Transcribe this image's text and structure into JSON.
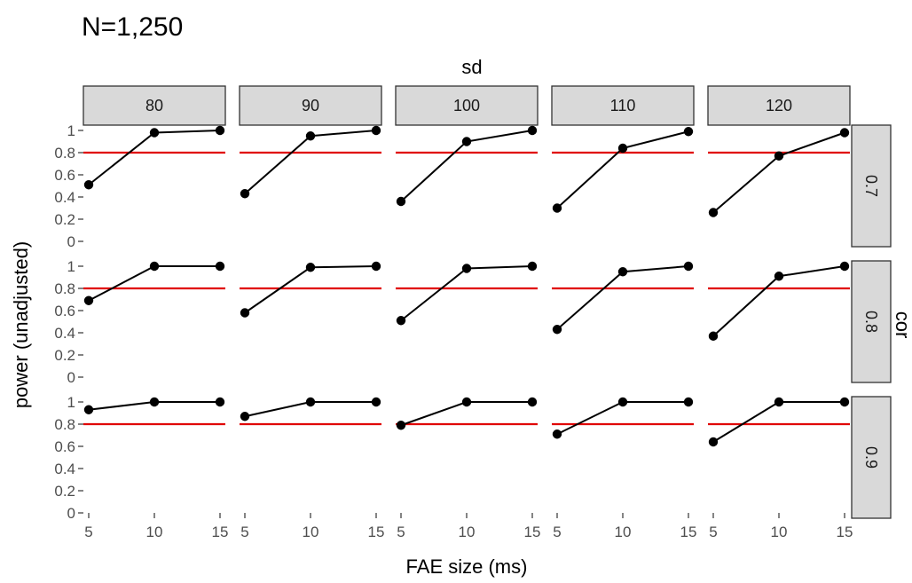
{
  "chart_data": {
    "type": "line",
    "title": "N=1,250",
    "xlabel": "FAE size (ms)",
    "ylabel": "power (unadjusted)",
    "col_facet_label": "sd",
    "row_facet_label": "cor",
    "col_facets": [
      "80",
      "90",
      "100",
      "110",
      "120"
    ],
    "row_facets": [
      "0.7",
      "0.8",
      "0.9"
    ],
    "x": [
      5,
      10,
      15
    ],
    "x_ticks": [
      "5",
      "10",
      "15"
    ],
    "y_ticks": [
      "0",
      "0.2",
      "0.4",
      "0.6",
      "0.8",
      "1"
    ],
    "ylim": [
      0,
      1
    ],
    "xlim": [
      5,
      15
    ],
    "reference_line": {
      "y": 0.8,
      "color": "#e00000"
    },
    "grid": false,
    "panels": [
      {
        "cor": "0.7",
        "sd": "80",
        "values": [
          0.51,
          0.98,
          1.0
        ]
      },
      {
        "cor": "0.7",
        "sd": "90",
        "values": [
          0.43,
          0.95,
          1.0
        ]
      },
      {
        "cor": "0.7",
        "sd": "100",
        "values": [
          0.36,
          0.9,
          1.0
        ]
      },
      {
        "cor": "0.7",
        "sd": "110",
        "values": [
          0.3,
          0.84,
          0.99
        ]
      },
      {
        "cor": "0.7",
        "sd": "120",
        "values": [
          0.26,
          0.77,
          0.98
        ]
      },
      {
        "cor": "0.8",
        "sd": "80",
        "values": [
          0.69,
          1.0,
          1.0
        ]
      },
      {
        "cor": "0.8",
        "sd": "90",
        "values": [
          0.58,
          0.99,
          1.0
        ]
      },
      {
        "cor": "0.8",
        "sd": "100",
        "values": [
          0.51,
          0.98,
          1.0
        ]
      },
      {
        "cor": "0.8",
        "sd": "110",
        "values": [
          0.43,
          0.95,
          1.0
        ]
      },
      {
        "cor": "0.8",
        "sd": "120",
        "values": [
          0.37,
          0.91,
          1.0
        ]
      },
      {
        "cor": "0.9",
        "sd": "80",
        "values": [
          0.93,
          1.0,
          1.0
        ]
      },
      {
        "cor": "0.9",
        "sd": "90",
        "values": [
          0.87,
          1.0,
          1.0
        ]
      },
      {
        "cor": "0.9",
        "sd": "100",
        "values": [
          0.79,
          1.0,
          1.0
        ]
      },
      {
        "cor": "0.9",
        "sd": "110",
        "values": [
          0.71,
          1.0,
          1.0
        ]
      },
      {
        "cor": "0.9",
        "sd": "120",
        "values": [
          0.64,
          1.0,
          1.0
        ]
      }
    ]
  }
}
